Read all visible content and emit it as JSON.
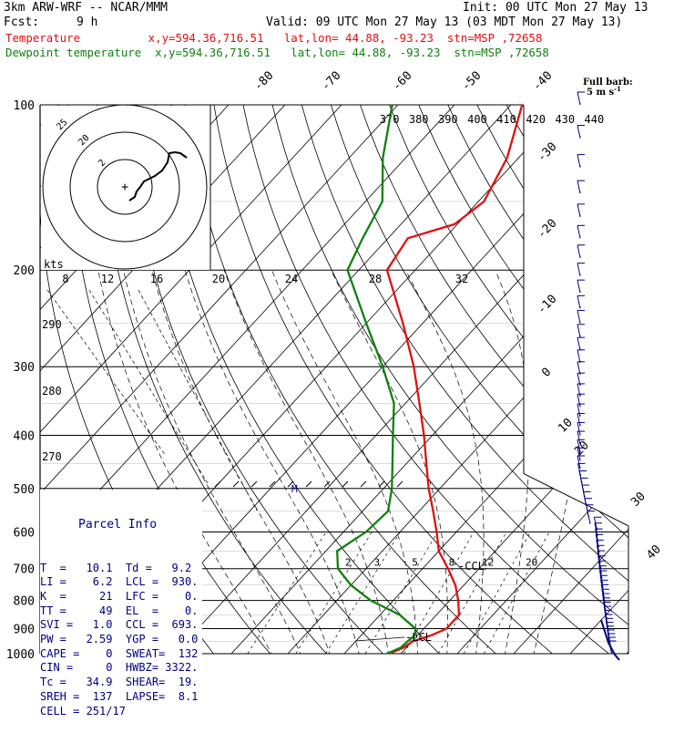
{
  "header": {
    "model": "3km ARW-WRF -- NCAR/MMM",
    "init": "Init: 00 UTC Mon 27 May 13",
    "fcst_label": "Fcst:",
    "fcst_value": "9 h",
    "valid": "Valid: 09 UTC Mon 27 May 13 (03 MDT Mon 27 May 13)",
    "temp_line": "Temperature          x,y=594.36,716.51   lat,lon= 44.88, -93.23  stn=MSP ,72658",
    "dew_line": "Dewpoint temperature  x,y=594.36,716.51   lat,lon= 44.88, -93.23  stn=MSP ,72658",
    "colors": {
      "temperature": "#e01010",
      "dewpoint": "#108010",
      "text": "#000000",
      "info": "#000080",
      "wind": "#000080"
    }
  },
  "wind_key": {
    "line1": "Full barb:",
    "line2": "5 m s",
    "exp": "-1"
  },
  "hodograph": {
    "ring_labels": [
      "25",
      "20",
      "2"
    ],
    "origin_mark": "+"
  },
  "kts_label": "kts",
  "chart_data": {
    "type": "line",
    "title": "",
    "xlabel": "",
    "ylabel": "",
    "pressure_levels": [
      100,
      200,
      300,
      400,
      500,
      600,
      700,
      800,
      900,
      1000
    ],
    "skewed_temperature_ticks": [
      -80,
      -70,
      -60,
      -50,
      -40,
      -30,
      -20,
      -10,
      0,
      10,
      20,
      30,
      40
    ],
    "theta_labels": [
      370,
      380,
      390,
      400,
      410,
      420,
      430,
      440
    ],
    "theta_labels_low": [
      290,
      280,
      270
    ],
    "wind_speed_scale_kts": [
      8,
      12,
      16,
      20,
      24,
      28,
      32
    ],
    "mixing_ratio_labels": [
      2,
      3,
      5,
      8,
      12,
      20
    ],
    "series": [
      {
        "name": "Temperature",
        "color": "#e01010",
        "points": [
          {
            "p": 1000,
            "t": 8.0
          },
          {
            "p": 975,
            "t": 9.5
          },
          {
            "p": 950,
            "t": 10.1
          },
          {
            "p": 925,
            "t": 12.5
          },
          {
            "p": 900,
            "t": 14.0
          },
          {
            "p": 850,
            "t": 14.0
          },
          {
            "p": 800,
            "t": 11.5
          },
          {
            "p": 750,
            "t": 8.5
          },
          {
            "p": 700,
            "t": 4.5
          },
          {
            "p": 650,
            "t": 0.0
          },
          {
            "p": 600,
            "t": -3.5
          },
          {
            "p": 550,
            "t": -7.5
          },
          {
            "p": 500,
            "t": -12.0
          },
          {
            "p": 450,
            "t": -16.5
          },
          {
            "p": 400,
            "t": -21.5
          },
          {
            "p": 350,
            "t": -27.5
          },
          {
            "p": 300,
            "t": -34.5
          },
          {
            "p": 250,
            "t": -43.5
          },
          {
            "p": 200,
            "t": -55.0
          },
          {
            "p": 175,
            "t": -56.5
          },
          {
            "p": 165,
            "t": -50.5
          },
          {
            "p": 150,
            "t": -49.0
          },
          {
            "p": 125,
            "t": -52.0
          },
          {
            "p": 100,
            "t": -58.0
          }
        ]
      },
      {
        "name": "Dewpoint temperature",
        "color": "#108010",
        "points": [
          {
            "p": 1000,
            "t": 7.5
          },
          {
            "p": 975,
            "t": 9.0
          },
          {
            "p": 950,
            "t": 9.2
          },
          {
            "p": 925,
            "t": 9.5
          },
          {
            "p": 900,
            "t": 8.5
          },
          {
            "p": 850,
            "t": 3.5
          },
          {
            "p": 800,
            "t": -4.0
          },
          {
            "p": 750,
            "t": -10.0
          },
          {
            "p": 700,
            "t": -15.0
          },
          {
            "p": 650,
            "t": -18.0
          },
          {
            "p": 600,
            "t": -16.0
          },
          {
            "p": 550,
            "t": -15.5
          },
          {
            "p": 500,
            "t": -18.5
          },
          {
            "p": 450,
            "t": -22.5
          },
          {
            "p": 400,
            "t": -27.0
          },
          {
            "p": 350,
            "t": -32.0
          },
          {
            "p": 300,
            "t": -40.0
          },
          {
            "p": 250,
            "t": -50.0
          },
          {
            "p": 200,
            "t": -62.0
          },
          {
            "p": 175,
            "t": -64.5
          },
          {
            "p": 150,
            "t": -67.0
          },
          {
            "p": 125,
            "t": -74.0
          },
          {
            "p": 100,
            "t": -81.0
          }
        ]
      }
    ],
    "annotations": [
      "LCL",
      "CCL",
      "M"
    ],
    "hodograph_ring_labels_kts": [
      25,
      20,
      2
    ]
  },
  "parcel_info": {
    "title": "Parcel Info",
    "rows": [
      "T  =   10.1  Td =   9.2",
      "LI =    6.2  LCL =  930.",
      "K  =     21  LFC =    0.",
      "TT =     49  EL  =    0.",
      "SVI =   1.0  CCL =  693.",
      "PW =   2.59  YGP =   0.0",
      "CAPE =    0  SWEAT=  132",
      "CIN =     0  HWBZ= 3322.",
      "Tc =   34.9  SHEAR=  19.",
      "SREH =  137  LAPSE=  8.1",
      "CELL = 251/17"
    ]
  }
}
